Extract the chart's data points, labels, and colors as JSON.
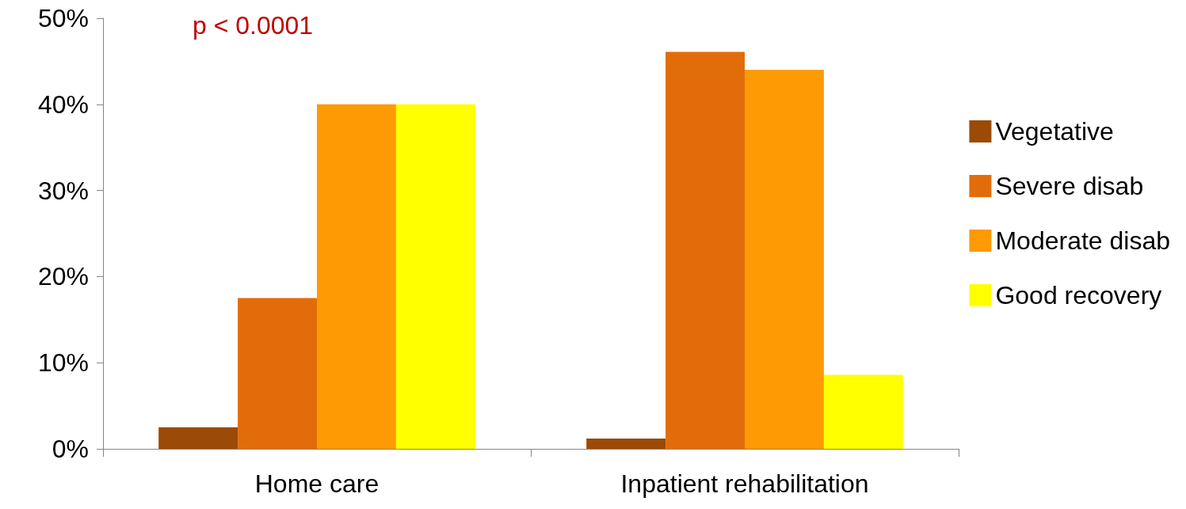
{
  "chart_data": {
    "type": "bar",
    "categories": [
      "Home care",
      "Inpatient rehabilitation"
    ],
    "series": [
      {
        "name": "Vegetative",
        "color": "#9b4a07",
        "values": [
          2.5,
          1.2
        ]
      },
      {
        "name": "Severe disab",
        "color": "#e36c0a",
        "values": [
          17.5,
          46.1
        ]
      },
      {
        "name": "Moderate disab",
        "color": "#fd9a04",
        "values": [
          40,
          44
        ]
      },
      {
        "name": "Good recovery",
        "color": "#ffff00",
        "values": [
          40,
          8.6
        ]
      }
    ],
    "ylim": [
      0,
      50
    ],
    "yticks": [
      {
        "value": 0,
        "label": "0%"
      },
      {
        "value": 10,
        "label": "10%"
      },
      {
        "value": 20,
        "label": "20%"
      },
      {
        "value": 30,
        "label": "30%"
      },
      {
        "value": 40,
        "label": "40%"
      },
      {
        "value": 50,
        "label": "50%"
      }
    ],
    "annotations": [
      "p < 0.0001"
    ],
    "legend": "right",
    "grid": false
  }
}
